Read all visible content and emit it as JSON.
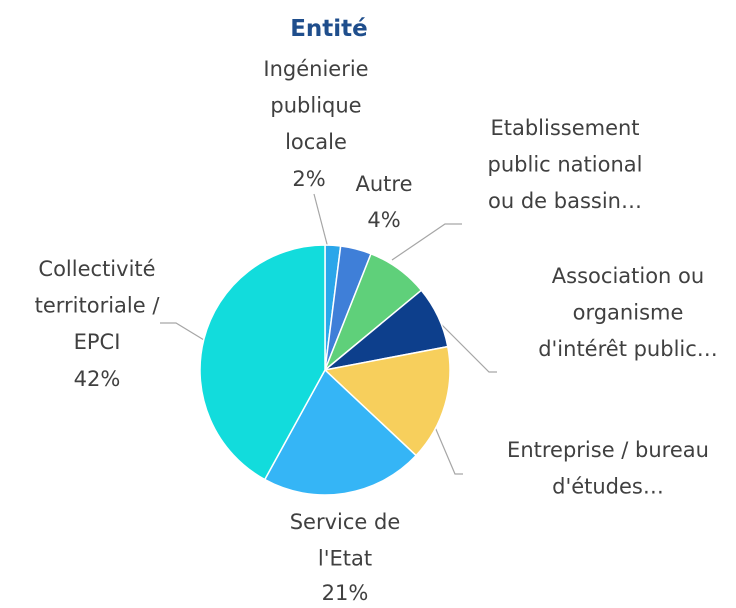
{
  "chart_data": {
    "type": "pie",
    "title": "Entité",
    "categories": [
      "Ingénierie\npublique\nlocale",
      "Autre",
      "Etablissement\npublic national\nou de bassin…",
      "Association ou\norganisme\nd'intérêt public…",
      "Entreprise / bureau\nd'études…",
      "Service de\nl'Etat",
      "Collectivité\nterritoriale /\nEPCI"
    ],
    "values": [
      2,
      4,
      8,
      8,
      15,
      21,
      42
    ],
    "value_labels": [
      "2%",
      "4%",
      null,
      null,
      null,
      "21%",
      "42%"
    ],
    "colors": [
      "#2aa6ea",
      "#3f7fd8",
      "#5fd07a",
      "#0d3f8c",
      "#f7cf5c",
      "#35b5f6",
      "#12dcdc"
    ]
  }
}
